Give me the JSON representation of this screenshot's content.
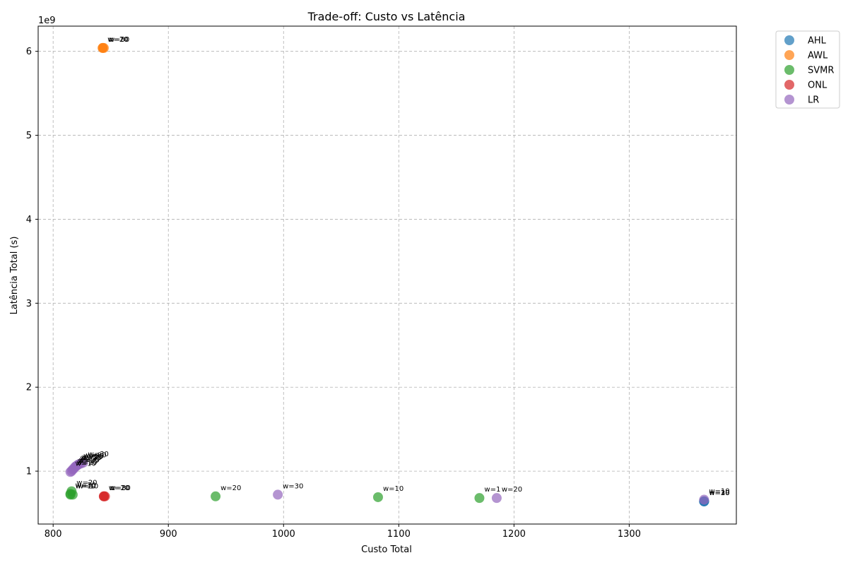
{
  "chart_data": {
    "type": "scatter",
    "title": "Trade-off: Custo vs Latência",
    "xlabel": "Custo Total",
    "ylabel": "Latência Total (s)",
    "y_offset_label": "1e9",
    "xlim": [
      787,
      1393
    ],
    "ylim": [
      0.37,
      6.3
    ],
    "xticks": [
      800,
      900,
      1000,
      1100,
      1200,
      1300
    ],
    "yticks": [
      1,
      2,
      3,
      4,
      5,
      6
    ],
    "grid": true,
    "legend_position": "outside top-right",
    "series": [
      {
        "name": "AHL",
        "color": "#1f77b4",
        "points": [
          {
            "x": 1365,
            "y": 0.64,
            "label": "w=10"
          },
          {
            "x": 1365,
            "y": 0.64,
            "label": "w=20"
          },
          {
            "x": 1365,
            "y": 0.64,
            "label": "w=30"
          }
        ]
      },
      {
        "name": "AWL",
        "color": "#ff7f0e",
        "points": [
          {
            "x": 843,
            "y": 6.04,
            "label": "w=10"
          },
          {
            "x": 843,
            "y": 6.04,
            "label": "w=20"
          },
          {
            "x": 844,
            "y": 6.04,
            "label": "w=30"
          }
        ]
      },
      {
        "name": "SVMR",
        "color": "#2ca02c",
        "points": [
          {
            "x": 815,
            "y": 0.72,
            "label": "w=10"
          },
          {
            "x": 817,
            "y": 0.72,
            "label": "w=10"
          },
          {
            "x": 816,
            "y": 0.76,
            "label": "w=20"
          },
          {
            "x": 815,
            "y": 0.73,
            "label": "w=30"
          },
          {
            "x": 941,
            "y": 0.7,
            "label": "w=20"
          },
          {
            "x": 1082,
            "y": 0.69,
            "label": "w=10"
          },
          {
            "x": 1170,
            "y": 0.68,
            "label": "w=1"
          }
        ]
      },
      {
        "name": "ONL",
        "color": "#d62728",
        "points": [
          {
            "x": 844,
            "y": 0.7,
            "label": "w=10"
          },
          {
            "x": 844,
            "y": 0.7,
            "label": "w=20"
          },
          {
            "x": 845,
            "y": 0.7,
            "label": "w=30"
          }
        ]
      },
      {
        "name": "LR",
        "color": "#9467bd",
        "points": [
          {
            "x": 815,
            "y": 0.99,
            "label": "w=10"
          },
          {
            "x": 816,
            "y": 1.0,
            "label": "w=10"
          },
          {
            "x": 817,
            "y": 1.02,
            "label": "w=10"
          },
          {
            "x": 818,
            "y": 1.03,
            "label": "w=20"
          },
          {
            "x": 819,
            "y": 1.05,
            "label": "w=20"
          },
          {
            "x": 820,
            "y": 1.06,
            "label": "w=20"
          },
          {
            "x": 821,
            "y": 1.07,
            "label": "w=20"
          },
          {
            "x": 822,
            "y": 1.08,
            "label": "w=30"
          },
          {
            "x": 824,
            "y": 1.09,
            "label": "w=30"
          },
          {
            "x": 826,
            "y": 1.1,
            "label": "w=30"
          },
          {
            "x": 995,
            "y": 0.72,
            "label": "w=30"
          },
          {
            "x": 1185,
            "y": 0.68,
            "label": "w=20"
          },
          {
            "x": 1365,
            "y": 0.66,
            "label": "w=10"
          }
        ]
      }
    ]
  }
}
